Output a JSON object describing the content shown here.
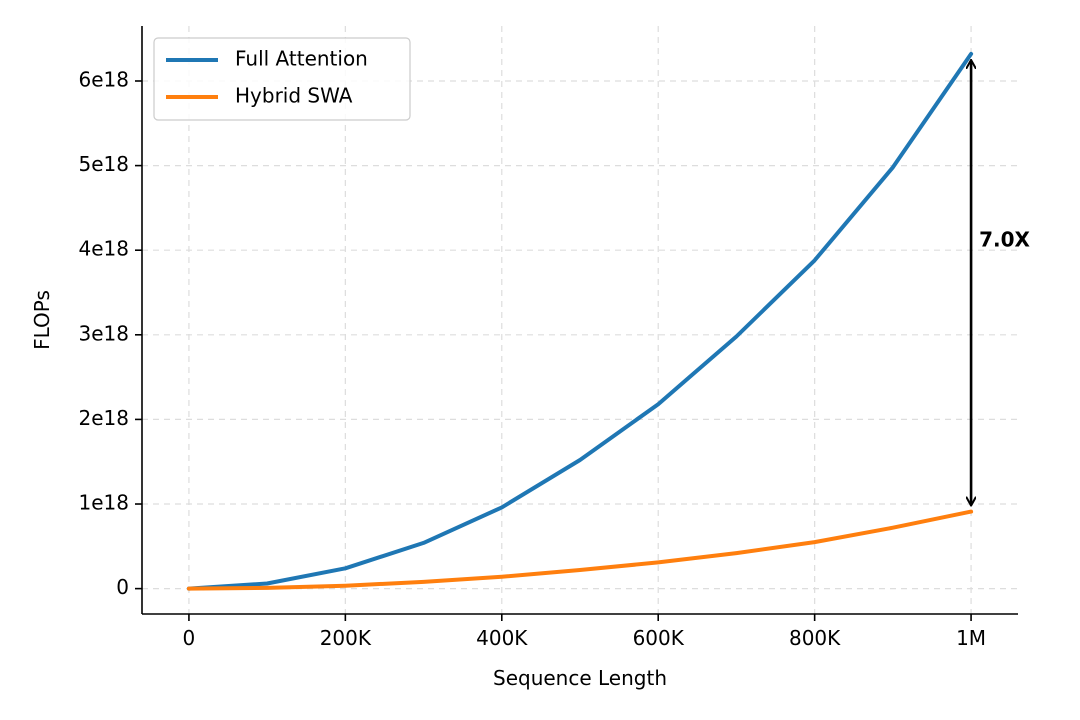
{
  "chart_data": {
    "type": "line",
    "title": "",
    "xlabel": "Sequence Length",
    "ylabel": "FLOPs",
    "xlim": [
      -60000,
      1060000
    ],
    "ylim": [
      -3e+17,
      6.65e+18
    ],
    "grid": true,
    "legend_position": "top-left",
    "x_ticks": [
      {
        "value": 0,
        "label": "0"
      },
      {
        "value": 200000,
        "label": "200K"
      },
      {
        "value": 400000,
        "label": "400K"
      },
      {
        "value": 600000,
        "label": "600K"
      },
      {
        "value": 800000,
        "label": "800K"
      },
      {
        "value": 1000000,
        "label": "1M"
      }
    ],
    "y_ticks": [
      {
        "value": 0,
        "label": "0"
      },
      {
        "value": 1e+18,
        "label": "1e18"
      },
      {
        "value": 2e+18,
        "label": "2e18"
      },
      {
        "value": 3e+18,
        "label": "3e18"
      },
      {
        "value": 4e+18,
        "label": "4e18"
      },
      {
        "value": 5e+18,
        "label": "5e18"
      },
      {
        "value": 6e+18,
        "label": "6e18"
      }
    ],
    "x": [
      0,
      100000,
      200000,
      300000,
      400000,
      500000,
      600000,
      700000,
      800000,
      900000,
      1000000
    ],
    "series": [
      {
        "name": "Full Attention",
        "color": "#1f77b4",
        "values": [
          0,
          6e+16,
          2.4e+17,
          5.4e+17,
          9.6e+17,
          1.52e+18,
          2.18e+18,
          2.98e+18,
          3.88e+18,
          4.98e+18,
          6.32e+18
        ]
      },
      {
        "name": "Hybrid SWA",
        "color": "#ff7f0e",
        "values": [
          0,
          8000000000000000.0,
          3.5e+16,
          8e+16,
          1.4e+17,
          2.2e+17,
          3.1e+17,
          4.2e+17,
          5.5e+17,
          7.2e+17,
          9.1e+17
        ]
      }
    ],
    "annotation": {
      "text": "7.0X",
      "x": 1000000,
      "y_from": 9.1e+17,
      "y_to": 6.32e+18
    }
  }
}
